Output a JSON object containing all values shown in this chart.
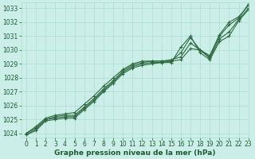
{
  "xlabel": "Graphe pression niveau de la mer (hPa)",
  "xlim": [
    -0.5,
    23
  ],
  "ylim": [
    1023.7,
    1033.4
  ],
  "yticks": [
    1024,
    1025,
    1026,
    1027,
    1028,
    1029,
    1030,
    1031,
    1032,
    1033
  ],
  "xticks": [
    0,
    1,
    2,
    3,
    4,
    5,
    6,
    7,
    8,
    9,
    10,
    11,
    12,
    13,
    14,
    15,
    16,
    17,
    18,
    19,
    20,
    21,
    22,
    23
  ],
  "bg_color": "#cceee8",
  "grid_color": "#aaddcc",
  "line_color": "#2d6a3f",
  "lines": [
    [
      1024.0,
      1024.4,
      1025.0,
      1025.2,
      1025.3,
      1025.3,
      1025.9,
      1026.5,
      1027.2,
      1027.8,
      1028.5,
      1028.9,
      1029.1,
      1029.2,
      1029.2,
      1029.2,
      1029.3,
      1030.1,
      1030.0,
      1029.5,
      1031.0,
      1031.8,
      1032.3,
      1033.3
    ],
    [
      1024.0,
      1024.5,
      1025.1,
      1025.3,
      1025.4,
      1025.5,
      1026.1,
      1026.7,
      1027.4,
      1028.0,
      1028.6,
      1029.0,
      1029.2,
      1029.2,
      1029.2,
      1029.3,
      1029.5,
      1030.5,
      1030.0,
      1029.6,
      1031.1,
      1032.0,
      1032.4,
      1033.2
    ],
    [
      1023.9,
      1024.3,
      1025.0,
      1025.1,
      1025.2,
      1025.2,
      1025.8,
      1026.4,
      1027.1,
      1027.7,
      1028.4,
      1028.8,
      1029.0,
      1029.1,
      1029.1,
      1029.2,
      1029.8,
      1030.9,
      1030.0,
      1029.4,
      1030.8,
      1031.3,
      1032.2,
      1033.0
    ],
    [
      1023.9,
      1024.2,
      1024.9,
      1025.0,
      1025.1,
      1025.1,
      1025.7,
      1026.3,
      1027.0,
      1027.6,
      1028.3,
      1028.7,
      1028.9,
      1029.0,
      1029.1,
      1029.1,
      1030.2,
      1031.0,
      1029.8,
      1029.3,
      1030.6,
      1031.0,
      1032.1,
      1032.9
    ]
  ],
  "marker_size": 2.5,
  "line_width": 0.8,
  "font_color": "#1a5c30",
  "label_fontsize": 6.5,
  "tick_fontsize": 5.5
}
